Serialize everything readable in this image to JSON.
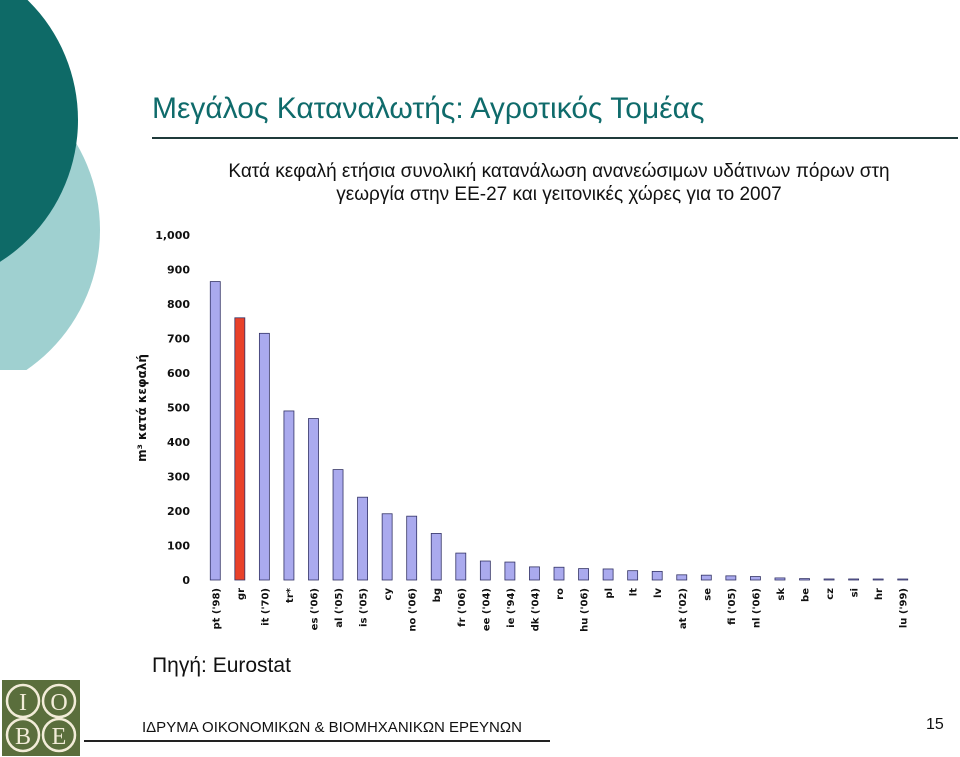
{
  "slide": {
    "title": "Μεγάλος Καταναλωτής: Αγροτικός Τομέας",
    "subtitle_line1": "Κατά κεφαλή ετήσια συνολική κατανάλωση ανανεώσιμων υδάτινων πόρων στη",
    "subtitle_line2": "γεωργία στην ΕΕ-27 και γειτονικές χώρες για το 2007",
    "source": "Πηγή: Eurostat",
    "footer": "ΙΔΡΥΜΑ ΟΙΚΟΝΟΜΙΚΩΝ & ΒΙΟΜΗΧΑΝΙΚΩΝ ΕΡΕΥΝΩΝ",
    "page_number": "15",
    "logo_letters": [
      "I",
      "O",
      "B",
      "E"
    ]
  },
  "colors": {
    "bar": "#aaaaee",
    "bar_highlight": "#e8412a",
    "title": "#0f6b6b",
    "deco_dark": "#0e6a67",
    "deco_light": "#9fd0d0",
    "logo_bg": "#5a6e3c"
  },
  "chart_data": {
    "type": "bar",
    "ylabel": "m³ κατά κεφαλή",
    "xlabel": "",
    "ylim": [
      0,
      1000
    ],
    "yticks": [
      0,
      100,
      200,
      300,
      400,
      500,
      600,
      700,
      800,
      900,
      1000
    ],
    "ytick_labels": [
      "0",
      "100",
      "200",
      "300",
      "400",
      "500",
      "600",
      "700",
      "800",
      "900",
      "1,000"
    ],
    "grid": false,
    "highlight_category": "gr",
    "categories": [
      "pt ('98)",
      "gr",
      "it ('70)",
      "tr*",
      "es ('06)",
      "al ('05)",
      "is ('05)",
      "cy",
      "no ('06)",
      "bg",
      "fr ('06)",
      "ee ('04)",
      "ie ('94)",
      "dk ('04)",
      "ro",
      "hu ('06)",
      "pl",
      "lt",
      "lv",
      "at ('02)",
      "se",
      "fi ('05)",
      "nl ('06)",
      "sk",
      "be",
      "cz",
      "si",
      "hr",
      "lu ('99)"
    ],
    "values": [
      865,
      760,
      715,
      490,
      468,
      320,
      240,
      192,
      185,
      135,
      78,
      55,
      52,
      38,
      37,
      33,
      32,
      27,
      25,
      15,
      14,
      12,
      10,
      6,
      4,
      3,
      3,
      2,
      1
    ]
  }
}
